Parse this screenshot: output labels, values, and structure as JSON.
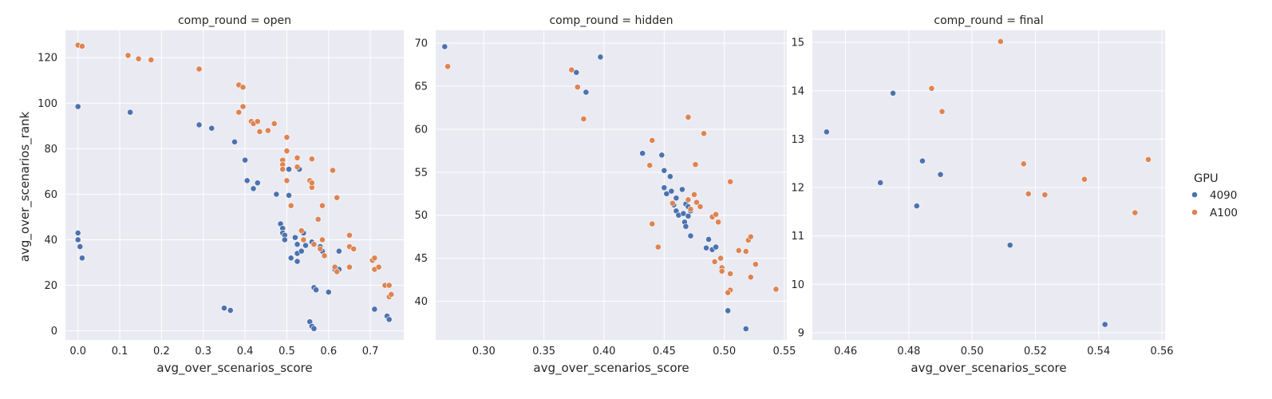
{
  "chart_data": {
    "type": "scatter",
    "xlabel": "avg_over_scenarios_score",
    "ylabel": "avg_over_scenarios_rank",
    "legend": {
      "title": "GPU",
      "placement": "right",
      "entries": [
        {
          "name": "4090",
          "color": "#4c72b0"
        },
        {
          "name": "A100",
          "color": "#dd8452"
        }
      ]
    },
    "grid": true,
    "facets": [
      {
        "title": "comp_round = open",
        "xlim": [
          -0.03,
          0.78
        ],
        "ylim": [
          -4,
          132
        ],
        "xticks": [
          "0.0",
          "0.1",
          "0.2",
          "0.3",
          "0.4",
          "0.5",
          "0.6",
          "0.7"
        ],
        "yticks": [
          "0",
          "20",
          "40",
          "60",
          "80",
          "100",
          "120"
        ],
        "series": [
          {
            "name": "4090",
            "points": [
              [
                0.0,
                98.5
              ],
              [
                0.0,
                43
              ],
              [
                0.0,
                40
              ],
              [
                0.005,
                37
              ],
              [
                0.01,
                32
              ],
              [
                0.125,
                96
              ],
              [
                0.29,
                90.5
              ],
              [
                0.32,
                89
              ],
              [
                0.375,
                83
              ],
              [
                0.4,
                75
              ],
              [
                0.405,
                66
              ],
              [
                0.42,
                62.5
              ],
              [
                0.43,
                65
              ],
              [
                0.475,
                60
              ],
              [
                0.485,
                47
              ],
              [
                0.49,
                45
              ],
              [
                0.49,
                43
              ],
              [
                0.495,
                42
              ],
              [
                0.495,
                40
              ],
              [
                0.505,
                71
              ],
              [
                0.505,
                59.5
              ],
              [
                0.51,
                32
              ],
              [
                0.52,
                41
              ],
              [
                0.525,
                38
              ],
              [
                0.525,
                34
              ],
              [
                0.525,
                30.5
              ],
              [
                0.53,
                71
              ],
              [
                0.535,
                35
              ],
              [
                0.54,
                43
              ],
              [
                0.545,
                37.5
              ],
              [
                0.56,
                39
              ],
              [
                0.565,
                19
              ],
              [
                0.57,
                18
              ],
              [
                0.555,
                4
              ],
              [
                0.56,
                2
              ],
              [
                0.565,
                1
              ],
              [
                0.58,
                37
              ],
              [
                0.585,
                35
              ],
              [
                0.6,
                17
              ],
              [
                0.615,
                27
              ],
              [
                0.625,
                27
              ],
              [
                0.625,
                35
              ],
              [
                0.35,
                10
              ],
              [
                0.365,
                9
              ],
              [
                0.71,
                9.5
              ],
              [
                0.74,
                6.5
              ],
              [
                0.745,
                5
              ]
            ]
          },
          {
            "name": "A100",
            "points": [
              [
                0.0,
                125.5
              ],
              [
                0.01,
                125
              ],
              [
                0.12,
                121
              ],
              [
                0.145,
                119.5
              ],
              [
                0.175,
                119
              ],
              [
                0.29,
                115
              ],
              [
                0.385,
                108
              ],
              [
                0.395,
                107
              ],
              [
                0.385,
                96
              ],
              [
                0.395,
                98.5
              ],
              [
                0.415,
                92
              ],
              [
                0.42,
                91
              ],
              [
                0.43,
                92
              ],
              [
                0.435,
                87.5
              ],
              [
                0.455,
                88
              ],
              [
                0.47,
                91
              ],
              [
                0.5,
                85
              ],
              [
                0.5,
                79
              ],
              [
                0.49,
                75
              ],
              [
                0.49,
                73
              ],
              [
                0.49,
                71
              ],
              [
                0.5,
                66
              ],
              [
                0.525,
                76
              ],
              [
                0.525,
                72
              ],
              [
                0.555,
                66
              ],
              [
                0.56,
                75.5
              ],
              [
                0.56,
                63
              ],
              [
                0.56,
                65
              ],
              [
                0.51,
                55
              ],
              [
                0.535,
                44
              ],
              [
                0.54,
                40
              ],
              [
                0.565,
                38
              ],
              [
                0.575,
                49
              ],
              [
                0.585,
                55
              ],
              [
                0.58,
                36
              ],
              [
                0.585,
                40
              ],
              [
                0.59,
                33
              ],
              [
                0.61,
                70.5
              ],
              [
                0.62,
                58.5
              ],
              [
                0.615,
                28
              ],
              [
                0.62,
                26
              ],
              [
                0.65,
                42
              ],
              [
                0.65,
                37
              ],
              [
                0.66,
                36
              ],
              [
                0.65,
                28
              ],
              [
                0.705,
                31
              ],
              [
                0.71,
                32
              ],
              [
                0.71,
                27
              ],
              [
                0.72,
                28
              ],
              [
                0.735,
                20
              ],
              [
                0.745,
                20
              ],
              [
                0.745,
                15
              ],
              [
                0.75,
                16
              ]
            ]
          }
        ]
      },
      {
        "title": "comp_round = hidden",
        "xlim": [
          0.26,
          0.552
        ],
        "ylim": [
          35.5,
          71.5
        ],
        "xticks": [
          "0.30",
          "0.35",
          "0.40",
          "0.45",
          "0.50",
          "0.55"
        ],
        "yticks": [
          "40",
          "45",
          "50",
          "55",
          "60",
          "65",
          "70"
        ],
        "series": [
          {
            "name": "4090",
            "points": [
              [
                0.2675,
                69.6
              ],
              [
                0.377,
                66.6
              ],
              [
                0.385,
                64.3
              ],
              [
                0.397,
                68.4
              ],
              [
                0.432,
                57.2
              ],
              [
                0.448,
                57
              ],
              [
                0.45,
                55.2
              ],
              [
                0.45,
                53.2
              ],
              [
                0.452,
                52.5
              ],
              [
                0.455,
                54.5
              ],
              [
                0.456,
                52.8
              ],
              [
                0.458,
                51.2
              ],
              [
                0.46,
                50.5
              ],
              [
                0.46,
                52
              ],
              [
                0.462,
                50
              ],
              [
                0.465,
                53
              ],
              [
                0.466,
                50.2
              ],
              [
                0.468,
                51.3
              ],
              [
                0.467,
                49.2
              ],
              [
                0.468,
                48.7
              ],
              [
                0.47,
                51
              ],
              [
                0.472,
                50.5
              ],
              [
                0.47,
                49.9
              ],
              [
                0.472,
                47.6
              ],
              [
                0.485,
                46.2
              ],
              [
                0.487,
                47.2
              ],
              [
                0.49,
                46
              ],
              [
                0.493,
                46.3
              ],
              [
                0.503,
                38.9
              ],
              [
                0.518,
                36.8
              ]
            ]
          },
          {
            "name": "A100",
            "points": [
              [
                0.27,
                67.3
              ],
              [
                0.373,
                66.9
              ],
              [
                0.378,
                64.9
              ],
              [
                0.383,
                61.2
              ],
              [
                0.44,
                58.7
              ],
              [
                0.438,
                55.8
              ],
              [
                0.44,
                49
              ],
              [
                0.445,
                46.3
              ],
              [
                0.457,
                51.4
              ],
              [
                0.47,
                61.4
              ],
              [
                0.47,
                51.8
              ],
              [
                0.472,
                50.7
              ],
              [
                0.475,
                52.4
              ],
              [
                0.477,
                51.5
              ],
              [
                0.476,
                55.9
              ],
              [
                0.48,
                51
              ],
              [
                0.483,
                59.5
              ],
              [
                0.49,
                49.8
              ],
              [
                0.493,
                50.1
              ],
              [
                0.495,
                49.2
              ],
              [
                0.505,
                53.9
              ],
              [
                0.492,
                44.6
              ],
              [
                0.498,
                43.9
              ],
              [
                0.498,
                43.5
              ],
              [
                0.497,
                45
              ],
              [
                0.505,
                41.3
              ],
              [
                0.503,
                41
              ],
              [
                0.505,
                43.2
              ],
              [
                0.512,
                45.9
              ],
              [
                0.518,
                45.8
              ],
              [
                0.52,
                47.1
              ],
              [
                0.522,
                47.5
              ],
              [
                0.522,
                42.8
              ],
              [
                0.526,
                44.3
              ],
              [
                0.543,
                41.4
              ]
            ]
          }
        ]
      },
      {
        "title": "comp_round = final",
        "xlim": [
          0.4495,
          0.561
        ],
        "ylim": [
          8.85,
          15.25
        ],
        "xticks": [
          "0.46",
          "0.48",
          "0.50",
          "0.52",
          "0.54",
          "0.56"
        ],
        "yticks": [
          "9",
          "10",
          "11",
          "12",
          "13",
          "14",
          "15"
        ],
        "series": [
          {
            "name": "4090",
            "points": [
              [
                0.454,
                13.15
              ],
              [
                0.471,
                12.1
              ],
              [
                0.475,
                13.95
              ],
              [
                0.4825,
                11.62
              ],
              [
                0.4843,
                12.55
              ],
              [
                0.49,
                12.27
              ],
              [
                0.512,
                10.81
              ],
              [
                0.542,
                9.17
              ]
            ]
          },
          {
            "name": "A100",
            "points": [
              [
                0.4872,
                14.05
              ],
              [
                0.4905,
                13.57
              ],
              [
                0.509,
                15.02
              ],
              [
                0.5163,
                12.49
              ],
              [
                0.5178,
                11.87
              ],
              [
                0.523,
                11.85
              ],
              [
                0.5355,
                12.17
              ],
              [
                0.5515,
                11.48
              ],
              [
                0.5557,
                12.58
              ]
            ]
          }
        ]
      }
    ]
  }
}
